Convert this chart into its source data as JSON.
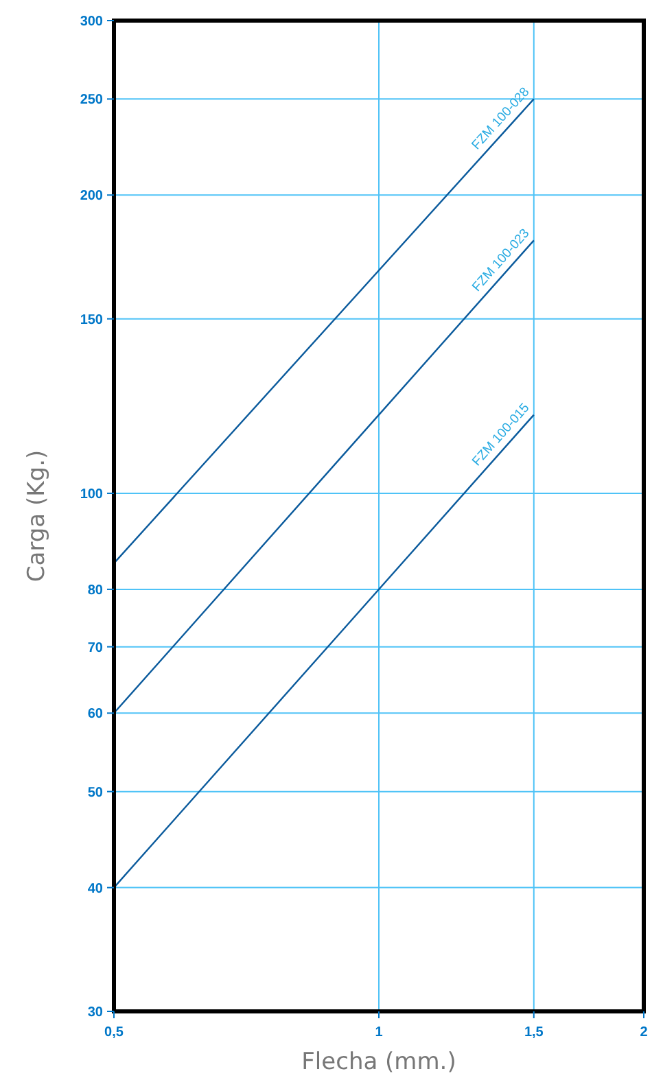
{
  "chart_data": {
    "type": "line",
    "xlabel": "Flecha (mm.)",
    "ylabel": "Carga (Kg.)",
    "log": "xy",
    "grid": true,
    "marker": "none",
    "line_style": "solid",
    "xlim": [
      0.5,
      2
    ],
    "ylim": [
      30,
      300
    ],
    "xticks": [
      {
        "value": 0.5,
        "label": "0,5"
      },
      1,
      {
        "value": 1.5,
        "label": "1,5"
      },
      2
    ],
    "yticks": [
      30,
      40,
      50,
      60,
      70,
      80,
      100,
      150,
      200,
      250,
      300
    ],
    "x": [
      0.5,
      1.5
    ],
    "series": [
      {
        "name": "FZM 100-028",
        "color": "#0a5a9c",
        "values": [
          85,
          250
        ]
      },
      {
        "name": "FZM 100-023",
        "color": "#0a5a9c",
        "values": [
          60,
          180
        ]
      },
      {
        "name": "FZM 100-015",
        "color": "#0a5a9c",
        "values": [
          40,
          120
        ]
      }
    ]
  }
}
